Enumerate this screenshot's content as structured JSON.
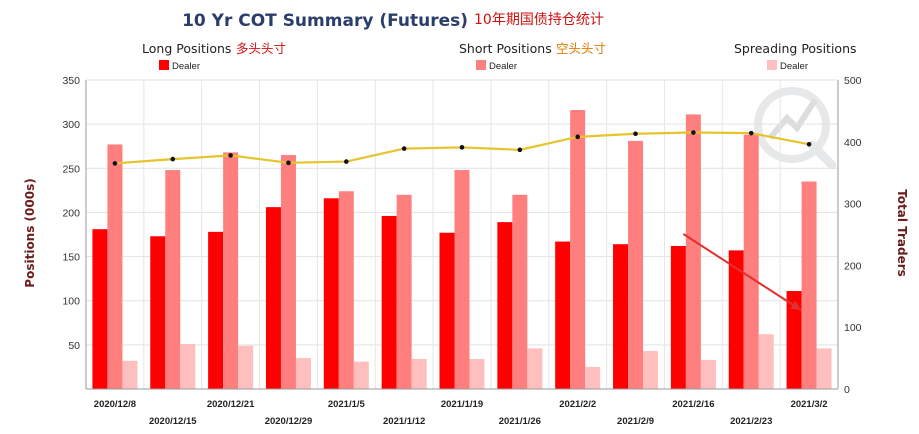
{
  "header": {
    "title": "10 Yr COT Summary (Futures)",
    "title_cn": "10年期国债持仓统计"
  },
  "legend_groups": [
    {
      "title": "Long Positions",
      "cn": "多头头寸",
      "cn_color": "#d01010",
      "entry": "Dealer",
      "color": "#ff0000"
    },
    {
      "title": "Short Positions",
      "cn": "空头头寸",
      "cn_color": "#e07a00",
      "entry": "Dealer",
      "color": "#ff7f7f"
    },
    {
      "title": "Spreading Positions",
      "cn": "",
      "cn_color": "#222222",
      "entry": "Dealer",
      "color": "#ffbfbf"
    }
  ],
  "chart_data": {
    "type": "bar",
    "categories": [
      "2020/12/8",
      "2020/12/15",
      "2020/12/21",
      "2020/12/29",
      "2021/1/5",
      "2021/1/12",
      "2021/1/19",
      "2021/1/26",
      "2021/2/2",
      "2021/2/9",
      "2021/2/16",
      "2021/2/23",
      "2021/3/2"
    ],
    "series": [
      {
        "name": "Dealer",
        "group": "Long Positions",
        "color": "#ff0000",
        "axis": "left",
        "values": [
          181,
          173,
          178,
          206,
          216,
          196,
          177,
          189,
          167,
          164,
          162,
          157,
          111
        ]
      },
      {
        "name": "Dealer",
        "group": "Short Positions",
        "color": "#ff7f7f",
        "axis": "left",
        "values": [
          277,
          248,
          268,
          265,
          224,
          220,
          248,
          220,
          316,
          281,
          311,
          288,
          235
        ]
      },
      {
        "name": "Dealer",
        "group": "Spreading Positions",
        "color": "#ffbfbf",
        "axis": "left",
        "values": [
          32,
          51,
          49,
          35,
          31,
          34,
          34,
          46,
          25,
          43,
          33,
          62,
          46
        ]
      },
      {
        "name": "",
        "type": "line",
        "color": "#e6c42c",
        "axis": "right",
        "values": [
          365,
          372,
          378,
          366,
          368,
          389,
          391,
          387,
          408,
          413,
          415,
          414,
          396
        ]
      }
    ],
    "ylabel": "Positions (000s)",
    "ylabel_right": "Total Traders",
    "ylim": [
      0,
      350
    ],
    "ylim_right": [
      0,
      500
    ],
    "yticks": [
      50,
      100,
      150,
      200,
      250,
      300,
      350
    ],
    "yticks_right": [
      0,
      100,
      200,
      300,
      400,
      500
    ],
    "grid": true,
    "annotation": {
      "type": "arrow",
      "color": "#e03030",
      "from": {
        "x": "2021/2/16",
        "y": 162
      },
      "to": {
        "x": "2021/3/2",
        "y": 78
      }
    }
  }
}
